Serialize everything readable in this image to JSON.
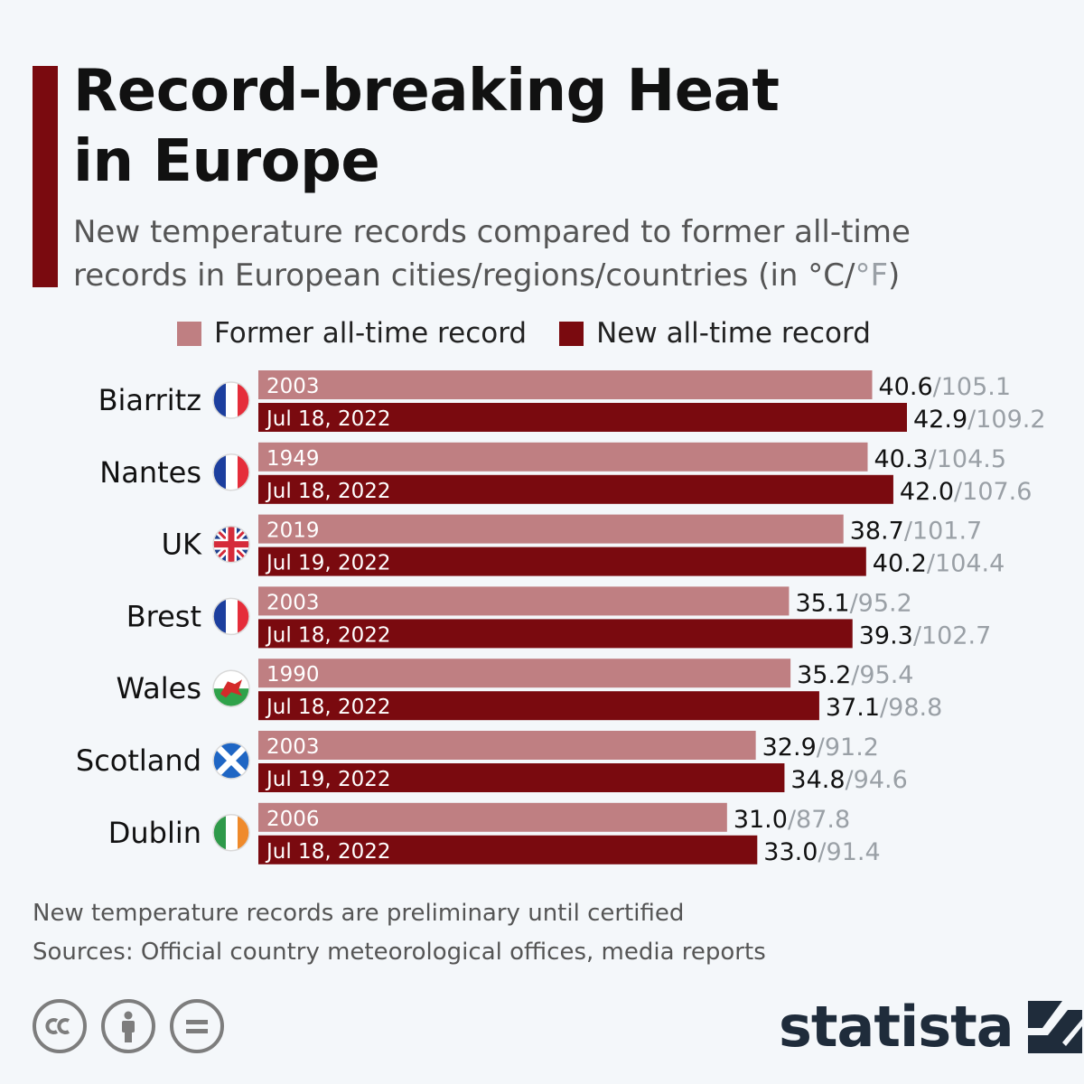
{
  "header": {
    "title_line1": "Record-breaking Heat",
    "title_line2": "in Europe",
    "subtitle_line1": "New temperature records compared to former all-time",
    "subtitle_line2_main": "records in European cities/regions/countries (in °C/",
    "subtitle_line2_dim": "°F",
    "subtitle_line2_end": ")"
  },
  "legend": {
    "former_label": "Former all-time record",
    "new_label": "New all-time record"
  },
  "colors": {
    "accent": "#7a0a0f",
    "former": "#bf7f82",
    "new": "#7a0a0f",
    "fahrenheit_text": "#9aa0a6"
  },
  "chart_data": {
    "type": "bar",
    "orientation": "horizontal",
    "unit_primary": "°C",
    "unit_secondary": "°F",
    "categories": [
      "Biarritz",
      "Nantes",
      "UK",
      "Brest",
      "Wales",
      "Scotland",
      "Dublin"
    ],
    "flags": [
      "france-flag-icon",
      "france-flag-icon",
      "uk-flag-icon",
      "france-flag-icon",
      "wales-flag-icon",
      "scotland-flag-icon",
      "ireland-flag-icon"
    ],
    "series": [
      {
        "name": "Former all-time record",
        "values": [
          40.6,
          40.3,
          38.7,
          35.1,
          35.2,
          32.9,
          31.0
        ],
        "values_f": [
          "105.1",
          "104.5",
          "101.7",
          "95.2",
          "95.4",
          "91.2",
          "87.8"
        ],
        "labels": [
          "2003",
          "1949",
          "2019",
          "2003",
          "1990",
          "2003",
          "2006"
        ]
      },
      {
        "name": "New all-time record",
        "values": [
          42.9,
          42.0,
          40.2,
          39.3,
          37.1,
          34.8,
          33.0
        ],
        "values_f": [
          "109.2",
          "107.6",
          "104.4",
          "102.7",
          "98.8",
          "94.6",
          "91.4"
        ],
        "labels": [
          "Jul 18, 2022",
          "Jul 18, 2022",
          "Jul 19, 2022",
          "Jul 18, 2022",
          "Jul 18, 2022",
          "Jul 19, 2022",
          "Jul 18, 2022"
        ]
      }
    ],
    "xlim": [
      0,
      42.9
    ]
  },
  "footer": {
    "note": "New temperature records are preliminary until certified",
    "sources": "Sources: Official country meteorological offices, media reports",
    "brand": "statista"
  }
}
